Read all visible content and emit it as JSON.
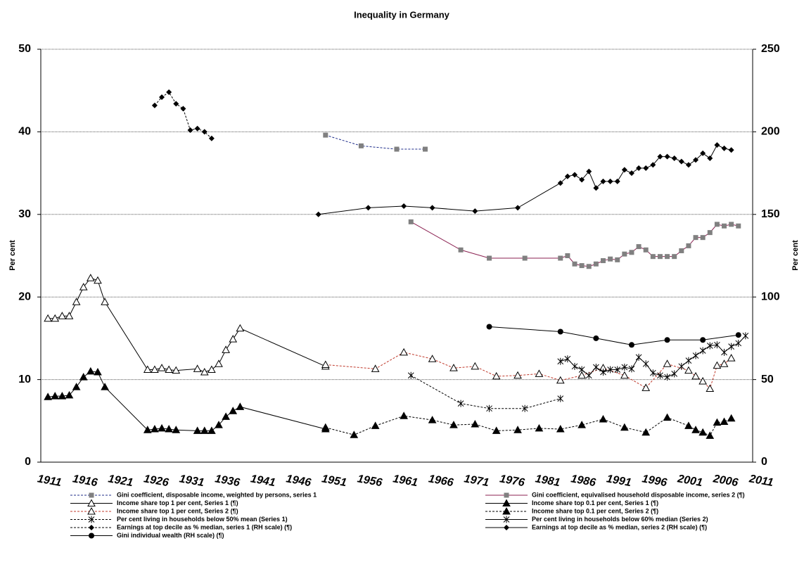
{
  "chart_data": {
    "type": "line",
    "title": "Inequality in Germany",
    "y_label": "Per cent",
    "y2_label": "Per cent",
    "xlim": [
      1910,
      2010
    ],
    "xticks": [
      1911,
      1916,
      1921,
      1926,
      1931,
      1936,
      1941,
      1946,
      1951,
      1956,
      1961,
      1966,
      1971,
      1976,
      1981,
      1986,
      1991,
      1996,
      2001,
      2006,
      2011
    ],
    "ylim": [
      0,
      50
    ],
    "yticks": [
      0,
      10,
      20,
      30,
      40,
      50
    ],
    "y2lim": [
      0,
      250
    ],
    "y2ticks": [
      0,
      50,
      100,
      150,
      200,
      250
    ],
    "grid": true,
    "series": [
      {
        "name": "Gini coefficient,  disposable income, weighted by persons, series 1",
        "color": "#1f2d8a",
        "marker_color": "#808080",
        "marker": "square",
        "dash": true,
        "x": [
          1950,
          1955,
          1960,
          1964
        ],
        "values": [
          39.6,
          38.3,
          37.9,
          37.9
        ]
      },
      {
        "name": "Gini coefficient,  equivalised household disposable income, series 2 (¶)",
        "color": "#8b2252",
        "marker_color": "#808080",
        "marker": "square",
        "dash": false,
        "x": [
          1962,
          1969,
          1973,
          1978,
          1983,
          1984,
          1985,
          1986,
          1987,
          1988,
          1989,
          1990,
          1991,
          1992,
          1993,
          1994,
          1995,
          1996,
          1997,
          1998,
          1999,
          2000,
          2001,
          2002,
          2003,
          2004,
          2005,
          2006,
          2007,
          2008
        ],
        "values": [
          29.1,
          25.7,
          24.7,
          24.7,
          24.7,
          25.0,
          24.0,
          23.8,
          23.7,
          24.0,
          24.4,
          24.6,
          24.5,
          25.2,
          25.4,
          26.1,
          25.7,
          24.9,
          24.9,
          24.9,
          24.9,
          25.6,
          26.2,
          27.2,
          27.2,
          27.8,
          28.8,
          28.6,
          28.8,
          28.6
        ]
      },
      {
        "name": "Income share top 1 per cent, Series 1 (¶)",
        "color": "#000000",
        "marker_color": "#000000",
        "marker": "triangle-open",
        "dash": false,
        "x": [
          1911,
          1912,
          1913,
          1914,
          1915,
          1916,
          1917,
          1918,
          1919,
          1925,
          1926,
          1927,
          1928,
          1929,
          1932,
          1933,
          1934,
          1935,
          1936,
          1937,
          1938,
          1950
        ],
        "values": [
          17.4,
          17.4,
          17.7,
          17.7,
          19.4,
          21.2,
          22.3,
          22.0,
          19.4,
          11.2,
          11.2,
          11.4,
          11.2,
          11.1,
          11.3,
          10.9,
          11.2,
          11.9,
          13.6,
          14.9,
          16.2,
          11.6
        ]
      },
      {
        "name": "Income share top 0.1 per cent, Series 1 (¶)",
        "color": "#000000",
        "marker_color": "#000000",
        "marker": "triangle",
        "dash": false,
        "x": [
          1911,
          1912,
          1913,
          1914,
          1915,
          1916,
          1917,
          1918,
          1919,
          1925,
          1926,
          1927,
          1928,
          1929,
          1932,
          1933,
          1934,
          1935,
          1936,
          1937,
          1938,
          1950
        ],
        "values": [
          7.9,
          8.0,
          8.0,
          8.1,
          9.1,
          10.3,
          11.0,
          10.9,
          9.1,
          3.9,
          4.0,
          4.1,
          4.0,
          3.9,
          3.8,
          3.8,
          3.8,
          4.5,
          5.5,
          6.2,
          6.7,
          4.0
        ]
      },
      {
        "name": "Income share top 1 per cent, Series 2 (¶)",
        "color": "#c0392b",
        "marker_color": "#000000",
        "marker": "triangle-open",
        "dash": true,
        "x": [
          1950,
          1957,
          1961,
          1965,
          1968,
          1971,
          1974,
          1977,
          1980,
          1983,
          1986,
          1989,
          1992,
          1995,
          1998,
          2001,
          2002,
          2003,
          2004,
          2005,
          2006,
          2007
        ],
        "values": [
          11.8,
          11.3,
          13.3,
          12.5,
          11.4,
          11.6,
          10.4,
          10.5,
          10.7,
          9.9,
          10.5,
          11.4,
          10.5,
          9.0,
          11.9,
          11.1,
          10.4,
          9.8,
          8.9,
          11.7,
          11.9,
          12.6
        ]
      },
      {
        "name": "Income share top 0.1 per cent, Series 2 (¶)",
        "color": "#000000",
        "marker_color": "#000000",
        "marker": "triangle",
        "dash": true,
        "x": [
          1950,
          1954,
          1957,
          1961,
          1965,
          1968,
          1971,
          1974,
          1977,
          1980,
          1983,
          1986,
          1989,
          1992,
          1995,
          1998,
          2001,
          2002,
          2003,
          2004,
          2005,
          2006,
          2007
        ],
        "values": [
          4.2,
          3.3,
          4.4,
          5.6,
          5.1,
          4.5,
          4.6,
          3.8,
          3.9,
          4.1,
          4.0,
          4.5,
          5.2,
          4.2,
          3.6,
          5.4,
          4.4,
          3.9,
          3.6,
          3.2,
          4.8,
          4.9,
          5.3
        ]
      },
      {
        "name": "Per cent living in households  below 50% mean (Series 1)",
        "color": "#000000",
        "marker_color": "#000000",
        "marker": "star",
        "dash": true,
        "x": [
          1962,
          1969,
          1973,
          1978,
          1983
        ],
        "values": [
          10.5,
          7.1,
          6.5,
          6.5,
          7.7
        ]
      },
      {
        "name": "Per cent living in households  below 60% median (Series 2)",
        "color": "#000000",
        "marker_color": "#000000",
        "marker": "star",
        "dash": false,
        "x": [
          1983,
          1984,
          1985,
          1986,
          1987,
          1988,
          1989,
          1990,
          1991,
          1992,
          1993,
          1994,
          1995,
          1996,
          1997,
          1998,
          1999,
          2000,
          2001,
          2002,
          2003,
          2004,
          2005,
          2006,
          2007,
          2008,
          2009
        ],
        "values": [
          12.2,
          12.5,
          11.6,
          11.2,
          10.5,
          11.5,
          10.9,
          11.2,
          11.2,
          11.5,
          11.3,
          12.7,
          11.9,
          10.8,
          10.5,
          10.3,
          10.7,
          11.6,
          12.3,
          12.9,
          13.5,
          14.1,
          14.2,
          13.3,
          14.0,
          14.4,
          15.3
        ]
      },
      {
        "name": "Earnings at top decile as % median, series 1 (RH scale) (¶)",
        "color": "#000000",
        "marker_color": "#000000",
        "marker": "diamond",
        "dash": true,
        "axis": "y2",
        "x": [
          1926,
          1927,
          1928,
          1929,
          1930,
          1931,
          1932,
          1933,
          1934
        ],
        "values": [
          216,
          221,
          224,
          217,
          214,
          201,
          202,
          200,
          196
        ]
      },
      {
        "name": "Earnings at top decile as % median, series 2 (RH scale) (¶)",
        "color": "#000000",
        "marker_color": "#000000",
        "marker": "diamond",
        "dash": false,
        "axis": "y2",
        "x": [
          1949,
          1956,
          1961,
          1965,
          1971,
          1977,
          1983,
          1984,
          1985,
          1986,
          1987,
          1988,
          1989,
          1990,
          1991,
          1992,
          1993,
          1994,
          1995,
          1996,
          1997,
          1998,
          1999,
          2000,
          2001,
          2002,
          2003,
          2004,
          2005,
          2006,
          2007
        ],
        "values": [
          150,
          154,
          155,
          154,
          152,
          154,
          169,
          173,
          174,
          171,
          176,
          166,
          170,
          170,
          170,
          177,
          175,
          178,
          178,
          180,
          185,
          185,
          184,
          182,
          180,
          183,
          187,
          184,
          192,
          190,
          189
        ]
      },
      {
        "name": "Gini individual  wealth (RH scale) (¶)",
        "color": "#000000",
        "marker_color": "#000000",
        "marker": "circle",
        "dash": false,
        "axis": "y2",
        "x": [
          1973,
          1983,
          1988,
          1993,
          1998,
          2003,
          2008
        ],
        "values": [
          82,
          79,
          75,
          71,
          74,
          74,
          77
        ]
      }
    ]
  }
}
